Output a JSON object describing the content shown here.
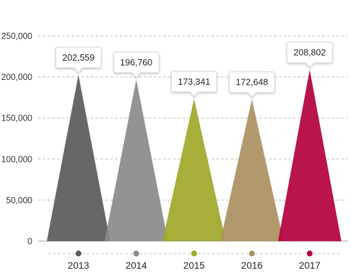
{
  "chart_data": {
    "type": "area",
    "categories": [
      "2013",
      "2014",
      "2015",
      "2016",
      "2017"
    ],
    "values": [
      202559,
      196760,
      173341,
      172648,
      208802
    ],
    "value_labels": [
      "202,559",
      "196,760",
      "173,341",
      "172,648",
      "208,802"
    ],
    "colors": [
      "#5a5a5a",
      "#8a8a8a",
      "#9fa728",
      "#ab9061",
      "#b3003d"
    ],
    "y_ticks": [
      0,
      50000,
      100000,
      150000,
      200000,
      250000
    ],
    "y_tick_labels": [
      "0",
      "50,000",
      "100,000",
      "150,000",
      "200,000",
      "250,000"
    ],
    "ylim": [
      0,
      250000
    ],
    "grid": true,
    "grid_style": "dashed",
    "shape": "triangle-peaks",
    "title": "",
    "xlabel": "",
    "ylabel": ""
  }
}
